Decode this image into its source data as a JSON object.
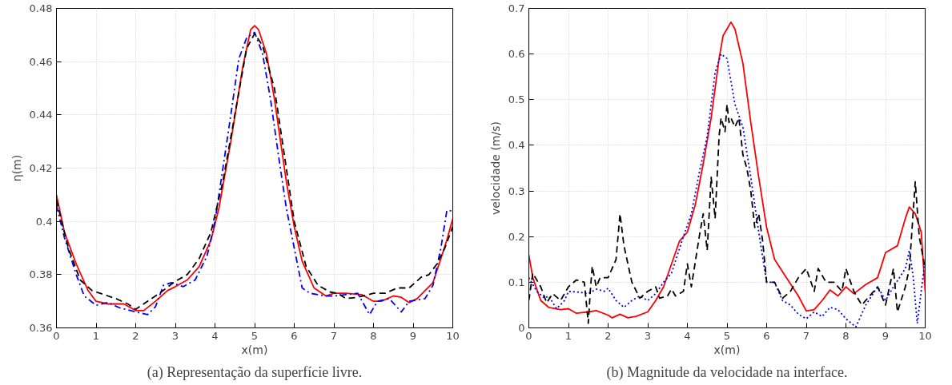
{
  "chart_data": [
    {
      "type": "line",
      "xlabel": "x(m)",
      "ylabel": "η(m)",
      "xlim": [
        0,
        10
      ],
      "ylim": [
        0.36,
        0.48
      ],
      "xticks": [
        0,
        1,
        2,
        3,
        4,
        5,
        6,
        7,
        8,
        9,
        10
      ],
      "yticks": [
        0.36,
        0.38,
        {
          "value": 0.4,
          "label": "0.4"
        },
        0.42,
        0.44,
        0.46,
        0.48
      ],
      "grid": true,
      "annotations": [
        "(a) Representação da superfície livre."
      ],
      "series": [
        {
          "color": "#ff0000",
          "line_style": "solid",
          "x": [
            0,
            0.2,
            0.5,
            0.8,
            1.0,
            1.3,
            1.7,
            2.0,
            2.2,
            2.5,
            2.8,
            3.0,
            3.3,
            3.6,
            3.9,
            4.1,
            4.4,
            4.7,
            4.9,
            5.0,
            5.1,
            5.3,
            5.5,
            5.8,
            6.0,
            6.2,
            6.5,
            6.8,
            7.0,
            7.3,
            7.7,
            8.0,
            8.2,
            8.5,
            8.7,
            8.9,
            9.1,
            9.3,
            9.5,
            9.7,
            9.85,
            10
          ],
          "values": [
            0.41,
            0.396,
            0.384,
            0.374,
            0.37,
            0.369,
            0.369,
            0.3665,
            0.3665,
            0.37,
            0.374,
            0.3755,
            0.378,
            0.383,
            0.393,
            0.405,
            0.43,
            0.458,
            0.472,
            0.4735,
            0.472,
            0.463,
            0.446,
            0.415,
            0.398,
            0.385,
            0.375,
            0.372,
            0.373,
            0.373,
            0.3725,
            0.37,
            0.37,
            0.372,
            0.3715,
            0.3695,
            0.371,
            0.374,
            0.377,
            0.386,
            0.393,
            0.401
          ]
        },
        {
          "color": "#0000ff",
          "line_style": "dashdot",
          "x": [
            0,
            0.2,
            0.5,
            0.7,
            1.0,
            1.3,
            1.6,
            2.0,
            2.3,
            2.5,
            2.7,
            2.9,
            3.2,
            3.5,
            3.8,
            4.0,
            4.2,
            4.4,
            4.6,
            4.8,
            5.0,
            5.2,
            5.4,
            5.6,
            5.8,
            6.0,
            6.2,
            6.4,
            6.8,
            7.0,
            7.3,
            7.6,
            7.9,
            8.1,
            8.4,
            8.7,
            8.9,
            9.3,
            9.5,
            9.7,
            9.85,
            10
          ],
          "values": [
            0.406,
            0.394,
            0.38,
            0.372,
            0.3685,
            0.3695,
            0.3675,
            0.366,
            0.365,
            0.368,
            0.376,
            0.377,
            0.3755,
            0.378,
            0.387,
            0.4,
            0.42,
            0.44,
            0.461,
            0.469,
            0.471,
            0.463,
            0.446,
            0.425,
            0.405,
            0.39,
            0.375,
            0.373,
            0.372,
            0.372,
            0.3725,
            0.373,
            0.365,
            0.37,
            0.371,
            0.366,
            0.37,
            0.371,
            0.376,
            0.39,
            0.404,
            0.404
          ]
        },
        {
          "color": "#000000",
          "line_style": "dashed",
          "x": [
            0,
            0.3,
            0.6,
            0.9,
            1.2,
            1.5,
            1.8,
            2.0,
            2.2,
            2.6,
            3.0,
            3.3,
            3.6,
            3.9,
            4.2,
            4.5,
            4.8,
            5.0,
            5.2,
            5.5,
            5.8,
            6.0,
            6.3,
            6.6,
            6.9,
            7.1,
            7.3,
            7.6,
            8.0,
            8.3,
            8.6,
            8.9,
            9.2,
            9.4,
            9.6,
            9.8,
            10
          ],
          "values": [
            0.408,
            0.39,
            0.378,
            0.374,
            0.3725,
            0.371,
            0.369,
            0.367,
            0.369,
            0.373,
            0.3775,
            0.38,
            0.386,
            0.396,
            0.415,
            0.44,
            0.465,
            0.4705,
            0.466,
            0.45,
            0.42,
            0.4,
            0.383,
            0.376,
            0.3735,
            0.373,
            0.371,
            0.3715,
            0.373,
            0.373,
            0.375,
            0.375,
            0.379,
            0.38,
            0.384,
            0.39,
            0.398
          ]
        }
      ]
    },
    {
      "type": "line",
      "xlabel": "x(m)",
      "ylabel": "velocidade (m/s)",
      "xlim": [
        0,
        10
      ],
      "ylim": [
        0,
        0.7
      ],
      "xticks": [
        0,
        1,
        2,
        3,
        4,
        5,
        6,
        7,
        8,
        9,
        10
      ],
      "yticks": [
        0,
        0.1,
        0.2,
        0.3,
        0.4,
        0.5,
        0.6,
        0.7
      ],
      "grid": true,
      "annotations": [
        "(b) Magnitude da velocidade na interface."
      ],
      "series": [
        {
          "color": "#ff0000",
          "line_style": "solid",
          "x": [
            0,
            0.1,
            0.3,
            0.5,
            0.8,
            1.0,
            1.2,
            1.5,
            1.7,
            2.0,
            2.1,
            2.3,
            2.5,
            2.7,
            3.0,
            3.2,
            3.4,
            3.6,
            3.8,
            4.0,
            4.2,
            4.4,
            4.6,
            4.8,
            4.9,
            5.0,
            5.1,
            5.2,
            5.4,
            5.6,
            5.8,
            6.0,
            6.2,
            6.5,
            6.8,
            7.0,
            7.2,
            7.4,
            7.6,
            7.8,
            8.0,
            8.2,
            8.5,
            8.8,
            9.0,
            9.3,
            9.5,
            9.6,
            9.75,
            9.9,
            10
          ],
          "values": [
            0.16,
            0.11,
            0.06,
            0.045,
            0.04,
            0.042,
            0.032,
            0.035,
            0.038,
            0.028,
            0.022,
            0.03,
            0.022,
            0.025,
            0.035,
            0.06,
            0.09,
            0.14,
            0.19,
            0.21,
            0.27,
            0.36,
            0.46,
            0.59,
            0.64,
            0.655,
            0.67,
            0.655,
            0.58,
            0.45,
            0.33,
            0.22,
            0.15,
            0.11,
            0.07,
            0.037,
            0.04,
            0.06,
            0.083,
            0.07,
            0.09,
            0.075,
            0.095,
            0.11,
            0.165,
            0.18,
            0.24,
            0.265,
            0.25,
            0.21,
            0.08
          ]
        },
        {
          "color": "#0000ff",
          "line_style": "dotted",
          "x": [
            0,
            0.2,
            0.4,
            0.5,
            0.7,
            0.9,
            1.0,
            1.3,
            1.5,
            1.7,
            1.9,
            2.0,
            2.2,
            2.4,
            2.6,
            2.8,
            3.0,
            3.2,
            3.4,
            3.6,
            3.9,
            4.1,
            4.3,
            4.5,
            4.7,
            4.85,
            5.0,
            5.2,
            5.4,
            5.6,
            5.8,
            6.0,
            6.2,
            6.4,
            6.6,
            6.8,
            7.0,
            7.2,
            7.4,
            7.6,
            7.8,
            8.0,
            8.25,
            8.5,
            8.8,
            9.0,
            9.2,
            9.5,
            9.6,
            9.7,
            9.8,
            9.9,
            10
          ],
          "values": [
            0.11,
            0.08,
            0.065,
            0.07,
            0.042,
            0.06,
            0.08,
            0.078,
            0.075,
            0.085,
            0.08,
            0.087,
            0.06,
            0.045,
            0.06,
            0.07,
            0.06,
            0.075,
            0.1,
            0.12,
            0.2,
            0.25,
            0.34,
            0.42,
            0.56,
            0.6,
            0.59,
            0.49,
            0.44,
            0.33,
            0.21,
            0.1,
            0.1,
            0.06,
            0.05,
            0.03,
            0.02,
            0.035,
            0.025,
            0.045,
            0.04,
            0.02,
            0.002,
            0.05,
            0.09,
            0.06,
            0.09,
            0.13,
            0.17,
            0.11,
            0.01,
            0.08,
            0.15
          ]
        },
        {
          "color": "#000000",
          "line_style": "dashed",
          "x": [
            0,
            0.1,
            0.3,
            0.45,
            0.6,
            0.8,
            1.0,
            1.2,
            1.4,
            1.5,
            1.55,
            1.6,
            1.7,
            1.8,
            2.0,
            2.2,
            2.3,
            2.4,
            2.6,
            2.8,
            3.0,
            3.2,
            3.3,
            3.5,
            3.6,
            3.7,
            3.9,
            4.0,
            4.1,
            4.3,
            4.4,
            4.5,
            4.6,
            4.7,
            4.8,
            4.85,
            4.95,
            5.0,
            5.05,
            5.1,
            5.2,
            5.3,
            5.4,
            5.5,
            5.6,
            5.7,
            5.8,
            5.9,
            6.0,
            6.2,
            6.4,
            6.6,
            6.8,
            7.0,
            7.2,
            7.3,
            7.5,
            7.7,
            7.9,
            8.0,
            8.2,
            8.4,
            8.6,
            8.8,
            9.0,
            9.2,
            9.3,
            9.5,
            9.6,
            9.75,
            9.85,
            10
          ],
          "values": [
            0.06,
            0.12,
            0.09,
            0.055,
            0.075,
            0.06,
            0.09,
            0.105,
            0.1,
            0.01,
            0.08,
            0.135,
            0.09,
            0.11,
            0.11,
            0.15,
            0.25,
            0.18,
            0.1,
            0.065,
            0.08,
            0.09,
            0.065,
            0.07,
            0.085,
            0.07,
            0.08,
            0.14,
            0.09,
            0.2,
            0.25,
            0.17,
            0.33,
            0.24,
            0.42,
            0.46,
            0.43,
            0.49,
            0.45,
            0.46,
            0.44,
            0.46,
            0.38,
            0.35,
            0.3,
            0.22,
            0.25,
            0.19,
            0.1,
            0.1,
            0.065,
            0.08,
            0.11,
            0.13,
            0.08,
            0.13,
            0.1,
            0.1,
            0.08,
            0.13,
            0.08,
            0.05,
            0.07,
            0.09,
            0.05,
            0.13,
            0.035,
            0.09,
            0.13,
            0.32,
            0.2,
            0.13
          ]
        }
      ]
    }
  ]
}
